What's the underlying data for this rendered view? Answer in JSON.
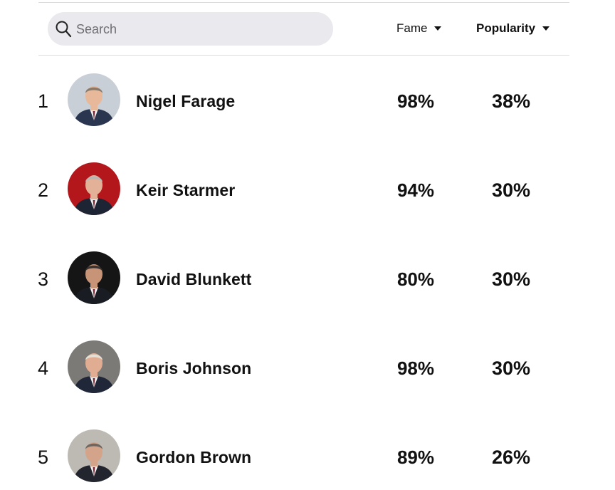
{
  "search": {
    "placeholder": "Search",
    "value": ""
  },
  "columns": {
    "fame_label": "Fame",
    "popularity_label": "Popularity",
    "sorted_by": "Popularity"
  },
  "rows": [
    {
      "rank": "1",
      "name": "Nigel Farage",
      "fame": "98%",
      "popularity": "38%",
      "avatar_bg": "#c9cfd6",
      "suit": "#2a3550",
      "skin": "#e7b89a",
      "hair": "#8a7a6a"
    },
    {
      "rank": "2",
      "name": "Keir Starmer",
      "fame": "94%",
      "popularity": "30%",
      "avatar_bg": "#b3161b",
      "suit": "#1d2433",
      "skin": "#e2b197",
      "hair": "#b9b6b2"
    },
    {
      "rank": "3",
      "name": "David Blunkett",
      "fame": "80%",
      "popularity": "30%",
      "avatar_bg": "#151515",
      "suit": "#1a1c24",
      "skin": "#c89478",
      "hair": "#3a3330"
    },
    {
      "rank": "4",
      "name": "Boris Johnson",
      "fame": "98%",
      "popularity": "30%",
      "avatar_bg": "#7c7a76",
      "suit": "#1f2738",
      "skin": "#e1ad92",
      "hair": "#e5e0d6"
    },
    {
      "rank": "5",
      "name": "Gordon Brown",
      "fame": "89%",
      "popularity": "26%",
      "avatar_bg": "#bdb9b3",
      "suit": "#23252e",
      "skin": "#d3a489",
      "hair": "#6e6660"
    }
  ]
}
